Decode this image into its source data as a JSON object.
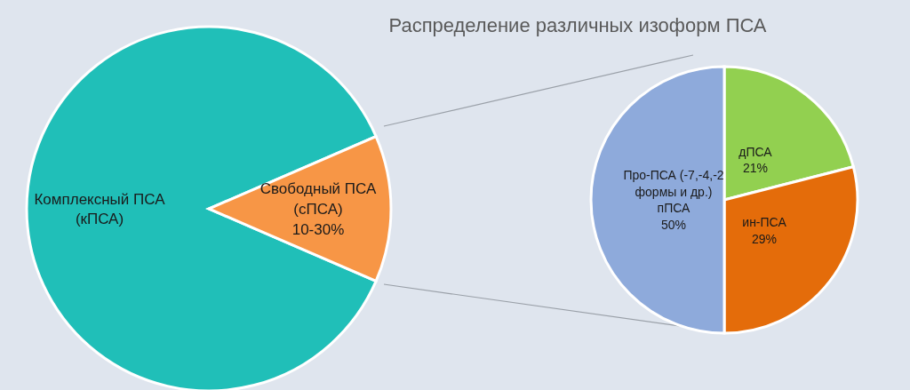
{
  "chart_data": [
    {
      "type": "pie",
      "categories": [
        "Комплексный ПСА\n(кПСА)",
        "Свободный ПСА\n(сПСА)\n10-30%"
      ],
      "values": [
        87,
        13
      ],
      "colors": [
        "#20bfb8",
        "#f79646"
      ]
    },
    {
      "type": "pie",
      "title": "Распределение различных изоформ ПСА",
      "categories": [
        "дПСА",
        "ин-ПСА",
        "Про-ПСА (-7,-4,-2\nформы и др.)\nпПСА"
      ],
      "values": [
        21,
        29,
        50
      ],
      "colors": [
        "#92d050",
        "#e46c0a",
        "#8eaadb"
      ],
      "value_labels": [
        "21%",
        "29%",
        "50%"
      ]
    }
  ]
}
